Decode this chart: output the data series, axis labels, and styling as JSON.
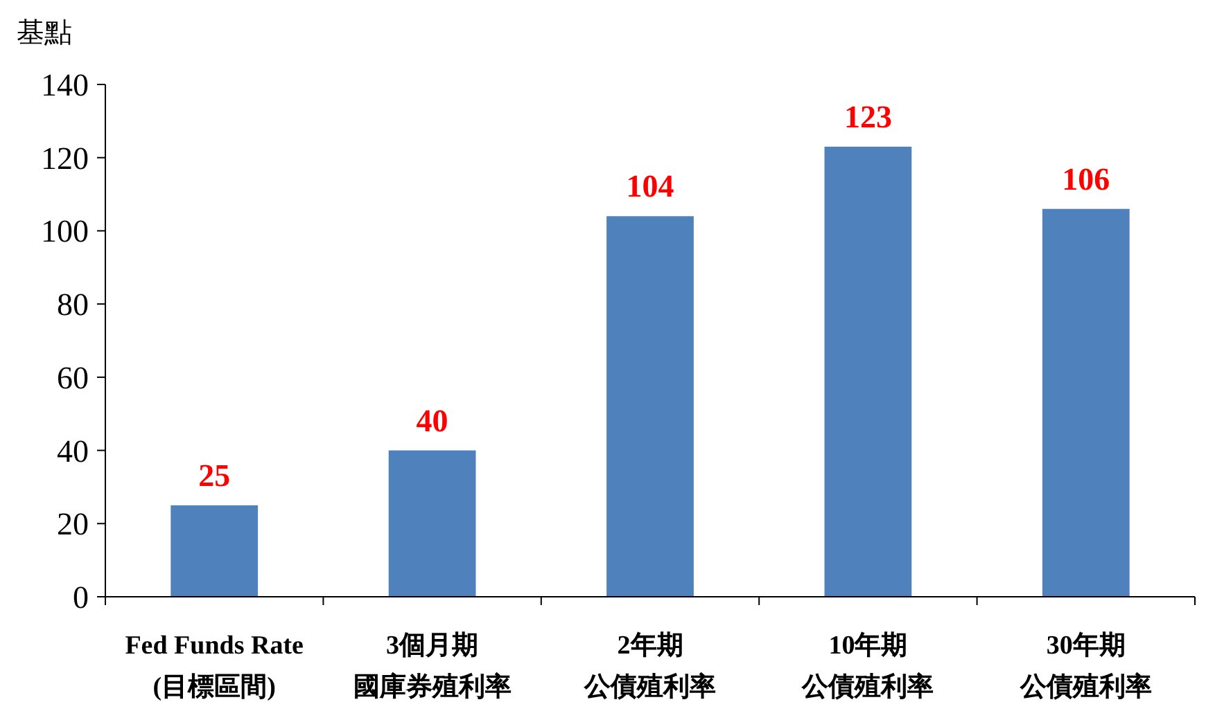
{
  "chart_data": {
    "type": "bar",
    "ylabel": "基點",
    "categories": [
      "Fed Funds Rate\n(目標區間)",
      "3個月期國庫券殖利率",
      "2年期公債殖利率",
      "10年期公債殖利率",
      "30年期公債殖利率"
    ],
    "values": [
      25,
      40,
      104,
      123,
      106
    ],
    "color": "#4f81bd",
    "ylim": [
      0,
      140
    ],
    "yticks": [
      0,
      20,
      40,
      60,
      80,
      100,
      120,
      140
    ],
    "data_labels": true,
    "grid": false
  }
}
